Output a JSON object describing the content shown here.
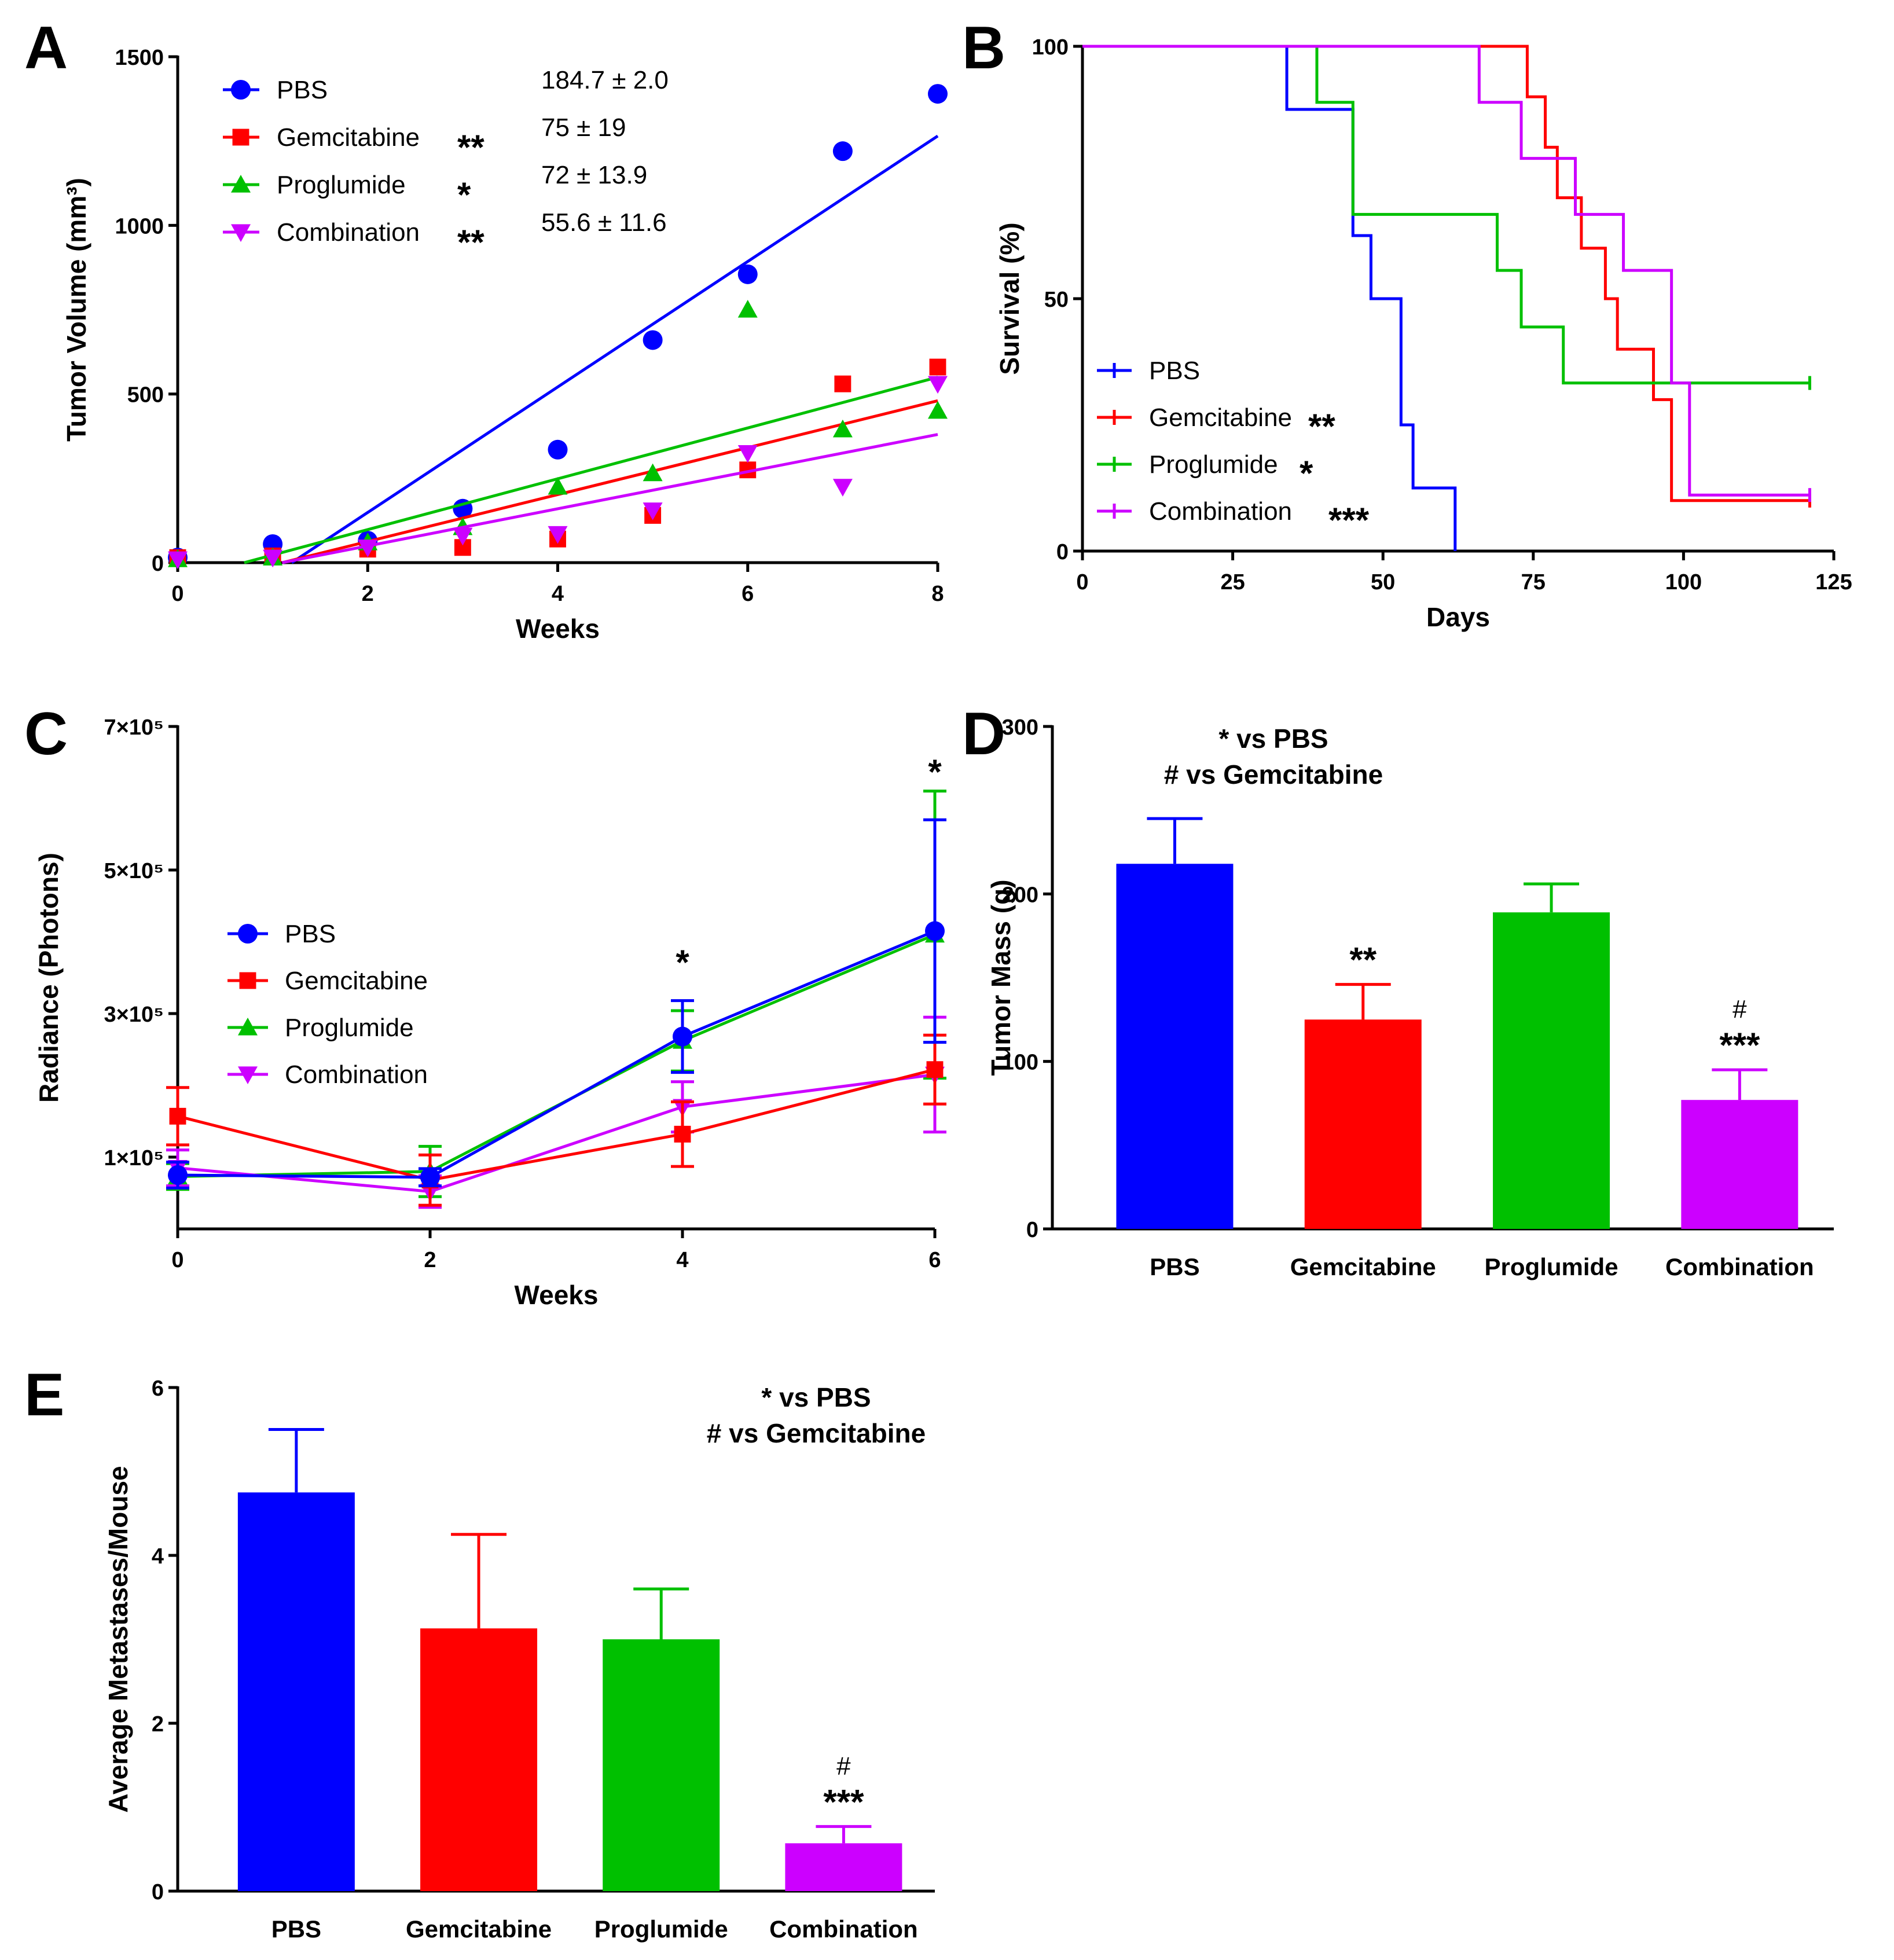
{
  "colors": {
    "PBS": "#0000ff",
    "Gemcitabine": "#ff0000",
    "Proglumide": "#00c000",
    "Combination": "#cc00ff"
  },
  "chart_data": [
    {
      "panel": "A",
      "type": "scatter",
      "xlabel": "Weeks",
      "ylabel": "Tumor Volume (mm³)",
      "xlim": [
        0,
        8
      ],
      "ylim": [
        0,
        1500
      ],
      "xticks": [
        "0",
        "2",
        "4",
        "6",
        "8"
      ],
      "yticks": [
        "0",
        "500",
        "1000",
        "1500"
      ],
      "legend_position": "top-left",
      "series": [
        {
          "name": "PBS",
          "color": "#0000ff",
          "marker": "circle",
          "sig": "",
          "stat": "184.7 ± 2.0",
          "x": [
            0,
            1,
            2,
            3,
            4,
            5,
            6,
            7,
            8
          ],
          "values": [
            15,
            55,
            65,
            160,
            335,
            660,
            855,
            1220,
            1390
          ],
          "fit": [
            [
              1.2,
              0
            ],
            [
              8,
              1265
            ]
          ]
        },
        {
          "name": "Gemcitabine",
          "color": "#ff0000",
          "marker": "square",
          "sig": "**",
          "stat": "75 ± 19",
          "x": [
            0,
            1,
            2,
            3,
            4,
            5,
            6,
            7,
            8
          ],
          "values": [
            15,
            20,
            40,
            45,
            70,
            140,
            275,
            530,
            580
          ],
          "fit": [
            [
              1.1,
              0
            ],
            [
              8,
              480
            ]
          ]
        },
        {
          "name": "Proglumide",
          "color": "#00c000",
          "marker": "triangle-up",
          "sig": "*",
          "stat": "72 ± 13.9",
          "x": [
            0,
            1,
            2,
            3,
            4,
            5,
            6,
            7,
            8
          ],
          "values": [
            10,
            15,
            60,
            105,
            225,
            265,
            750,
            395,
            450
          ],
          "fit": [
            [
              0.7,
              0
            ],
            [
              8,
              550
            ]
          ]
        },
        {
          "name": "Combination",
          "color": "#cc00ff",
          "marker": "triangle-down",
          "sig": "**",
          "stat": "55.6 ± 11.6",
          "x": [
            0,
            1,
            2,
            3,
            4,
            5,
            6,
            7,
            8
          ],
          "values": [
            10,
            15,
            45,
            80,
            85,
            155,
            325,
            225,
            530
          ],
          "fit": [
            [
              1.1,
              0
            ],
            [
              8,
              380
            ]
          ]
        }
      ]
    },
    {
      "panel": "B",
      "type": "line",
      "subtype": "kaplan-meier",
      "xlabel": "Days",
      "ylabel": "Survival (%)",
      "xlim": [
        0,
        125
      ],
      "ylim": [
        0,
        100
      ],
      "xticks": [
        "0",
        "25",
        "50",
        "75",
        "100",
        "125"
      ],
      "yticks": [
        "0",
        "50",
        "100"
      ],
      "legend_position": "bottom-left",
      "series": [
        {
          "name": "PBS",
          "color": "#0000ff",
          "sig": "",
          "steps": [
            [
              0,
              100
            ],
            [
              34,
              87.5
            ],
            [
              45,
              62.5
            ],
            [
              48,
              50
            ],
            [
              53,
              25
            ],
            [
              55,
              12.5
            ],
            [
              62,
              0
            ]
          ],
          "end": 62
        },
        {
          "name": "Gemcitabine",
          "color": "#ff0000",
          "sig": "**",
          "steps": [
            [
              0,
              100
            ],
            [
              62,
              100
            ],
            [
              74,
              90
            ],
            [
              77,
              80
            ],
            [
              79,
              70
            ],
            [
              83,
              60
            ],
            [
              87,
              50
            ],
            [
              89,
              40
            ],
            [
              95,
              30
            ],
            [
              98,
              10
            ]
          ],
          "end": 121
        },
        {
          "name": "Proglumide",
          "color": "#00c000",
          "sig": "*",
          "steps": [
            [
              0,
              100
            ],
            [
              39,
              88.9
            ],
            [
              45,
              66.7
            ],
            [
              69,
              55.6
            ],
            [
              73,
              44.4
            ],
            [
              80,
              33.3
            ]
          ],
          "end": 121
        },
        {
          "name": "Combination",
          "color": "#cc00ff",
          "sig": "***",
          "steps": [
            [
              0,
              100
            ],
            [
              66,
              88.9
            ],
            [
              73,
              77.8
            ],
            [
              75,
              77.8
            ],
            [
              82,
              66.7
            ],
            [
              90,
              55.6
            ],
            [
              98,
              33.3
            ],
            [
              101,
              11.1
            ]
          ],
          "end": 121
        }
      ]
    },
    {
      "panel": "C",
      "type": "line",
      "xlabel": "Weeks",
      "ylabel": "Radiance (Photons)",
      "xlim": [
        0,
        6
      ],
      "ylim": [
        0,
        700000
      ],
      "xticks": [
        "0",
        "2",
        "4",
        "6"
      ],
      "ytick_values": [
        100000,
        300000,
        500000,
        700000
      ],
      "yticks": [
        "1×10⁵",
        "3×10⁵",
        "5×10⁵",
        "7×10⁵"
      ],
      "legend_position": "center-left",
      "annotations": [
        {
          "x": 4,
          "text": "*"
        },
        {
          "x": 6,
          "text": "*"
        }
      ],
      "series": [
        {
          "name": "PBS",
          "color": "#0000ff",
          "marker": "circle",
          "x": [
            0,
            2,
            4,
            6
          ],
          "values": [
            75000,
            72000,
            268000,
            415000
          ],
          "error": [
            18000,
            12000,
            50000,
            155000
          ]
        },
        {
          "name": "Gemcitabine",
          "color": "#ff0000",
          "marker": "square",
          "x": [
            0,
            2,
            4,
            6
          ],
          "values": [
            157000,
            68000,
            132000,
            222000
          ],
          "error": [
            40000,
            35000,
            45000,
            48000
          ]
        },
        {
          "name": "Proglumide",
          "color": "#00c000",
          "marker": "triangle-up",
          "x": [
            0,
            2,
            4,
            6
          ],
          "values": [
            73000,
            80000,
            262000,
            410000
          ],
          "error": [
            18000,
            35000,
            42000,
            200000
          ]
        },
        {
          "name": "Combination",
          "color": "#cc00ff",
          "marker": "triangle-down",
          "x": [
            0,
            2,
            4,
            6
          ],
          "values": [
            85000,
            52000,
            170000,
            215000
          ],
          "error": [
            25000,
            22000,
            35000,
            80000
          ]
        }
      ]
    },
    {
      "panel": "D",
      "type": "bar",
      "ylabel": "Tumor Mass (g)",
      "ylim": [
        0,
        300
      ],
      "yticks": [
        "0",
        "100",
        "200",
        "300"
      ],
      "notes": [
        "* vs PBS",
        "# vs Gemcitabine"
      ],
      "categories": [
        "PBS",
        "Gemcitabine",
        "Proglumide",
        "Combination"
      ],
      "values": [
        218,
        125,
        189,
        77
      ],
      "error": [
        27,
        21,
        17,
        18
      ],
      "sig": [
        "",
        "**",
        "",
        "***"
      ],
      "hash": [
        "",
        "",
        "",
        "#"
      ]
    },
    {
      "panel": "E",
      "type": "bar",
      "ylabel": "Average Metastases/Mouse",
      "ylim": [
        0,
        6
      ],
      "yticks": [
        "0",
        "2",
        "4",
        "6"
      ],
      "notes": [
        "* vs PBS",
        "# vs Gemcitabine"
      ],
      "categories": [
        "PBS",
        "Gemcitabine",
        "Proglumide",
        "Combination"
      ],
      "values": [
        4.75,
        3.13,
        3.0,
        0.57
      ],
      "error": [
        0.75,
        1.12,
        0.6,
        0.2
      ],
      "sig": [
        "",
        "",
        "",
        "***"
      ],
      "hash": [
        "",
        "",
        "",
        "#"
      ]
    }
  ]
}
